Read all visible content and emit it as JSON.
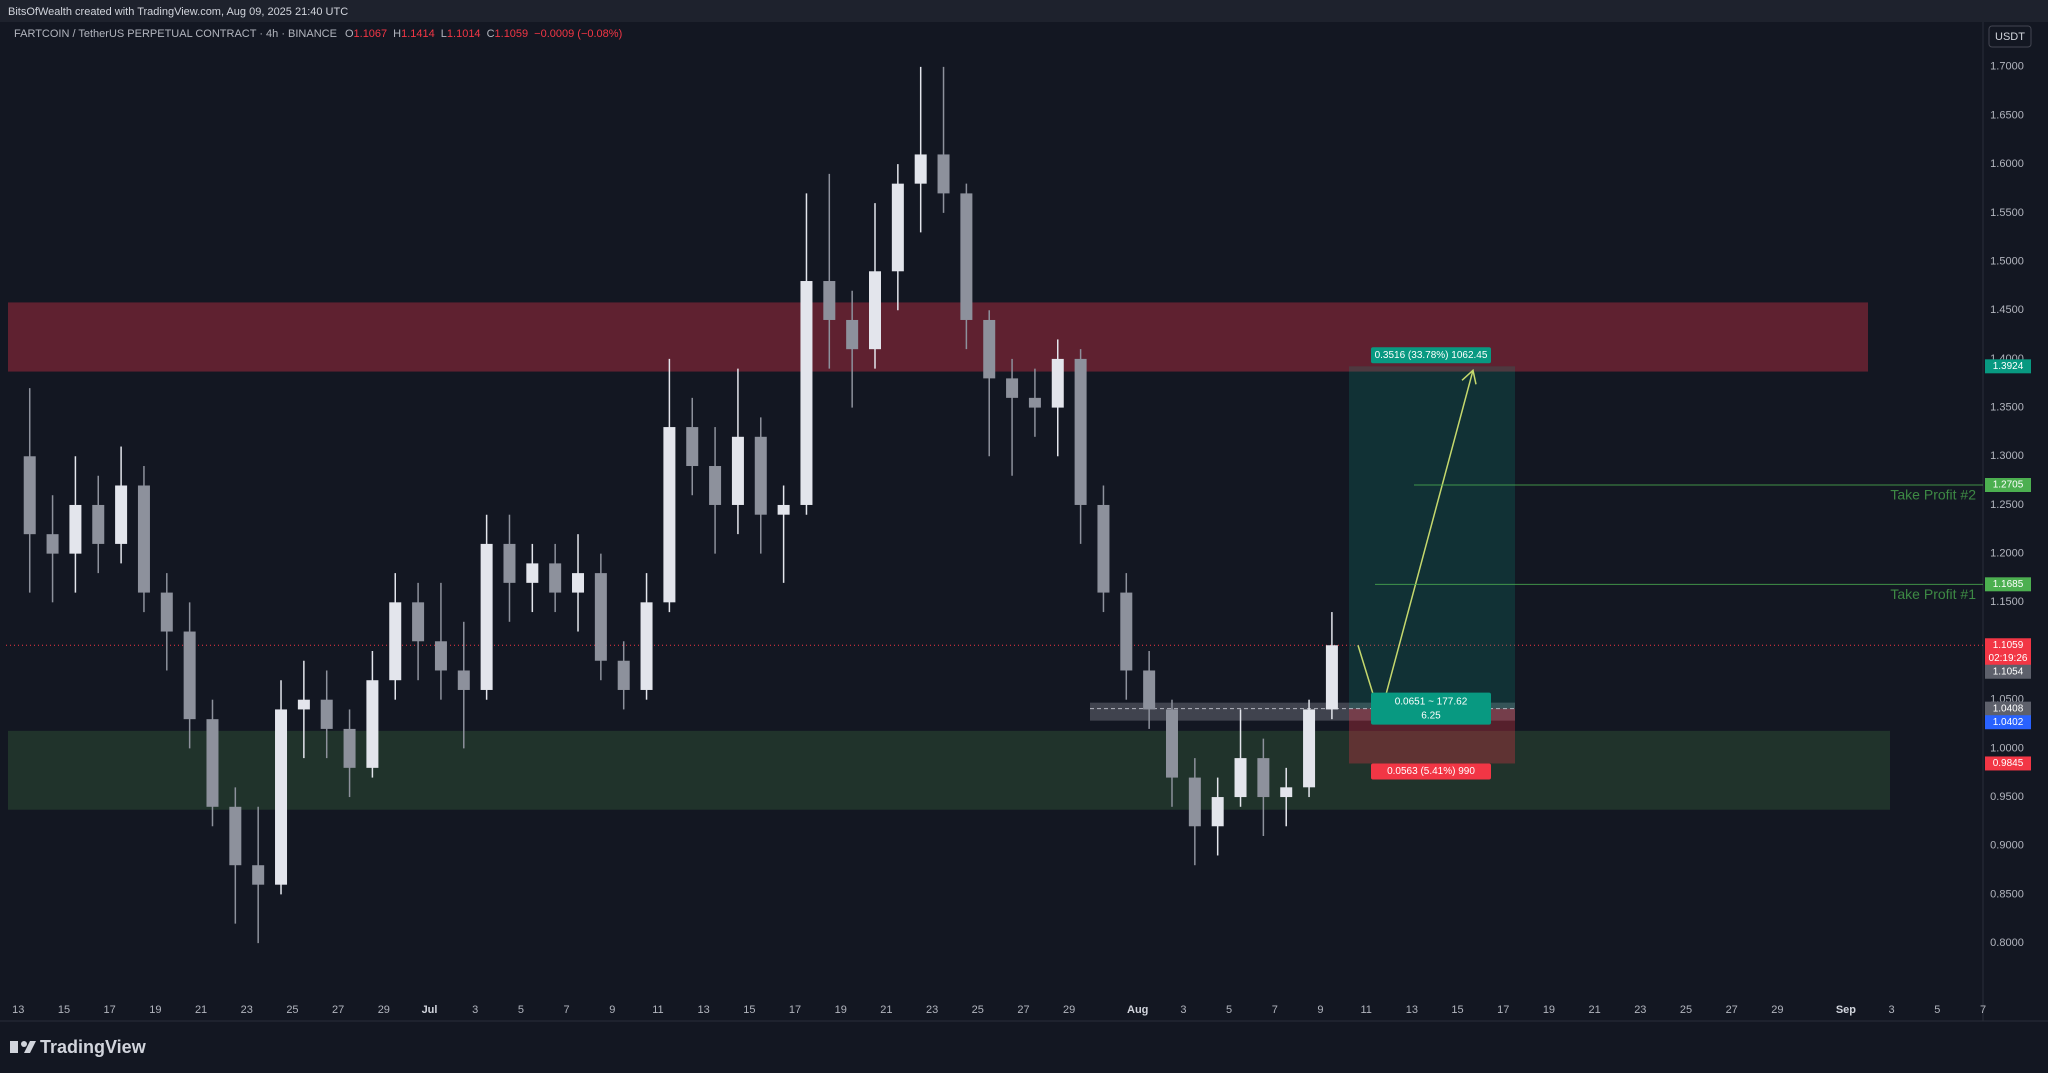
{
  "chart_data": {
    "type": "candlestick",
    "attribution": "BitsOfWealth created with TradingView.com, Aug 09, 2025 21:40 UTC",
    "symbol": "FARTCOIN / TetherUS PERPETUAL CONTRACT · 4h · BINANCE",
    "ohlc": [
      {
        "label": "O",
        "value": 1.1067
      },
      {
        "label": "H",
        "value": 1.1414
      },
      {
        "label": "L",
        "value": 1.1014
      },
      {
        "label": "C",
        "value": 1.1059
      }
    ],
    "change": "−0.0009 (−0.08%)",
    "currency": "USDT",
    "logo": "TradingView",
    "categories": [
      "13",
      null,
      "15",
      null,
      "17",
      null,
      "19",
      null,
      "21",
      null,
      "23",
      null,
      "25",
      null,
      "27",
      null,
      "29",
      null,
      "Jul",
      null,
      "3",
      null,
      "5",
      null,
      "7",
      null,
      "9",
      null,
      "11",
      null,
      "13",
      null,
      "15",
      null,
      "17",
      null,
      "19",
      null,
      "21",
      null,
      "23",
      null,
      "25",
      null,
      "27",
      null,
      "29",
      null,
      null,
      "Aug",
      null,
      "3",
      null,
      "5",
      null,
      "7",
      null,
      "9",
      null,
      "11",
      null,
      "13",
      null,
      "15",
      null,
      "17",
      null,
      "19",
      null,
      "21",
      null,
      "23",
      null,
      "25",
      null,
      "27",
      null,
      "29",
      null,
      null,
      "Sep",
      null,
      "3",
      null,
      "5",
      null,
      "7"
    ],
    "open": [
      1.3,
      1.22,
      1.2,
      1.25,
      1.21,
      1.27,
      1.16,
      1.12,
      1.03,
      0.94,
      0.88,
      0.86,
      1.04,
      1.05,
      1.02,
      0.98,
      1.07,
      1.15,
      1.11,
      1.08,
      1.06,
      1.21,
      1.17,
      1.19,
      1.16,
      1.18,
      1.09,
      1.06,
      1.15,
      1.33,
      1.29,
      1.25,
      1.32,
      1.24,
      1.25,
      1.48,
      1.44,
      1.41,
      1.49,
      1.58,
      1.61,
      1.57,
      1.44,
      1.38,
      1.36,
      1.35,
      1.4,
      1.25,
      1.16,
      1.08,
      1.04,
      0.97,
      0.92,
      0.95,
      0.99,
      0.95,
      0.96,
      1.04,
      null,
      null,
      null,
      null,
      null,
      null,
      null,
      null,
      null,
      null,
      null,
      null,
      null,
      null,
      null,
      null,
      null,
      null,
      null,
      null,
      null,
      null,
      null,
      null,
      null,
      null,
      null,
      null,
      null
    ],
    "high": [
      1.37,
      1.26,
      1.3,
      1.28,
      1.31,
      1.29,
      1.18,
      1.15,
      1.05,
      0.96,
      0.94,
      1.07,
      1.09,
      1.08,
      1.04,
      1.1,
      1.18,
      1.17,
      1.17,
      1.13,
      1.24,
      1.24,
      1.21,
      1.21,
      1.22,
      1.2,
      1.11,
      1.18,
      1.4,
      1.36,
      1.33,
      1.39,
      1.34,
      1.27,
      1.57,
      1.59,
      1.47,
      1.56,
      1.6,
      1.7,
      1.7,
      1.58,
      1.45,
      1.4,
      1.39,
      1.42,
      1.41,
      1.27,
      1.18,
      1.1,
      1.05,
      0.99,
      0.97,
      1.04,
      1.01,
      0.98,
      1.05,
      1.14,
      null,
      null,
      null,
      null,
      null,
      null,
      null,
      null,
      null,
      null,
      null,
      null,
      null,
      null,
      null,
      null,
      null,
      null,
      null,
      null,
      null,
      null,
      null,
      null,
      null,
      null,
      null,
      null,
      null
    ],
    "low": [
      1.16,
      1.15,
      1.16,
      1.18,
      1.19,
      1.14,
      1.08,
      1.0,
      0.92,
      0.82,
      0.8,
      0.85,
      0.99,
      0.99,
      0.95,
      0.97,
      1.05,
      1.07,
      1.05,
      1.0,
      1.05,
      1.13,
      1.14,
      1.14,
      1.12,
      1.07,
      1.04,
      1.05,
      1.14,
      1.26,
      1.2,
      1.22,
      1.2,
      1.17,
      1.24,
      1.39,
      1.35,
      1.39,
      1.45,
      1.53,
      1.55,
      1.41,
      1.3,
      1.28,
      1.32,
      1.3,
      1.21,
      1.14,
      1.05,
      1.02,
      0.94,
      0.88,
      0.89,
      0.94,
      0.91,
      0.92,
      0.95,
      1.03,
      null,
      null,
      null,
      null,
      null,
      null,
      null,
      null,
      null,
      null,
      null,
      null,
      null,
      null,
      null,
      null,
      null,
      null,
      null,
      null,
      null,
      null,
      null,
      null,
      null,
      null,
      null,
      null,
      null
    ],
    "close": [
      1.22,
      1.2,
      1.25,
      1.21,
      1.27,
      1.16,
      1.12,
      1.03,
      0.94,
      0.88,
      0.86,
      1.04,
      1.05,
      1.02,
      0.98,
      1.07,
      1.15,
      1.11,
      1.08,
      1.06,
      1.21,
      1.17,
      1.19,
      1.16,
      1.18,
      1.09,
      1.06,
      1.15,
      1.33,
      1.29,
      1.25,
      1.32,
      1.24,
      1.25,
      1.48,
      1.44,
      1.41,
      1.49,
      1.58,
      1.61,
      1.57,
      1.44,
      1.38,
      1.36,
      1.35,
      1.4,
      1.25,
      1.16,
      1.08,
      1.04,
      0.97,
      0.92,
      0.95,
      0.99,
      0.95,
      0.96,
      1.04,
      1.1059,
      null,
      null,
      null,
      null,
      null,
      null,
      null,
      null,
      null,
      null,
      null,
      null,
      null,
      null,
      null,
      null,
      null,
      null,
      null,
      null,
      null,
      null,
      null,
      null,
      null,
      null,
      null,
      null,
      null
    ],
    "up_color": "#e3e5ec",
    "down_color": "#8d919c",
    "ylim": [
      0.72,
      1.745
    ],
    "yticks": [
      {
        "value": 0.8,
        "label": "0.8000"
      },
      {
        "value": 0.85,
        "label": "0.8500"
      },
      {
        "value": 0.9,
        "label": "0.9000"
      },
      {
        "value": 0.95,
        "label": "0.9500"
      },
      {
        "value": 1.0,
        "label": "1.0000"
      },
      {
        "value": 1.05,
        "label": "1.0500"
      },
      {
        "value": 1.1,
        "label": "1.1000"
      },
      {
        "value": 1.15,
        "label": "1.1500"
      },
      {
        "value": 1.2,
        "label": "1.2000"
      },
      {
        "value": 1.25,
        "label": "1.2500"
      },
      {
        "value": 1.3,
        "label": "1.3000"
      },
      {
        "value": 1.35,
        "label": "1.3500"
      },
      {
        "value": 1.4,
        "label": "1.4000"
      },
      {
        "value": 1.45,
        "label": "1.4500"
      },
      {
        "value": 1.5,
        "label": "1.5000"
      },
      {
        "value": 1.55,
        "label": "1.5500"
      },
      {
        "value": 1.6,
        "label": "1.6000"
      },
      {
        "value": 1.65,
        "label": "1.6500"
      },
      {
        "value": 1.7,
        "label": "1.7000"
      }
    ],
    "grid": false,
    "zones": [
      {
        "from": 1.387,
        "to": 1.458,
        "color": "#7a2636"
      },
      {
        "from": 0.937,
        "to": 1.018,
        "color": "#263d2f"
      }
    ],
    "position": {
      "entry": 1.0408,
      "target": 1.3924,
      "stop": 0.9845,
      "target_label": "0.3516 (33.78%) 1062.45",
      "entry_label": "0.0651 ~ 177.62",
      "ratio": "6.25",
      "stop_label": "0.0563 (5.41%) 990",
      "target_color": "#089981",
      "stop_color": "#f23645",
      "entry_color": "#5d606b"
    },
    "take_profits": [
      {
        "label": "Take Profit #1",
        "value": 1.1685
      },
      {
        "label": "Take Profit #2",
        "value": 1.2705
      }
    ],
    "take_profit_color": "#4caf50",
    "last_color": "#f23645",
    "countdown": "02:19:26",
    "axis_tags": [
      {
        "value": 1.1054,
        "color": "#5d606b"
      },
      {
        "value": 1.0402,
        "color": "#2962ff"
      }
    ]
  }
}
